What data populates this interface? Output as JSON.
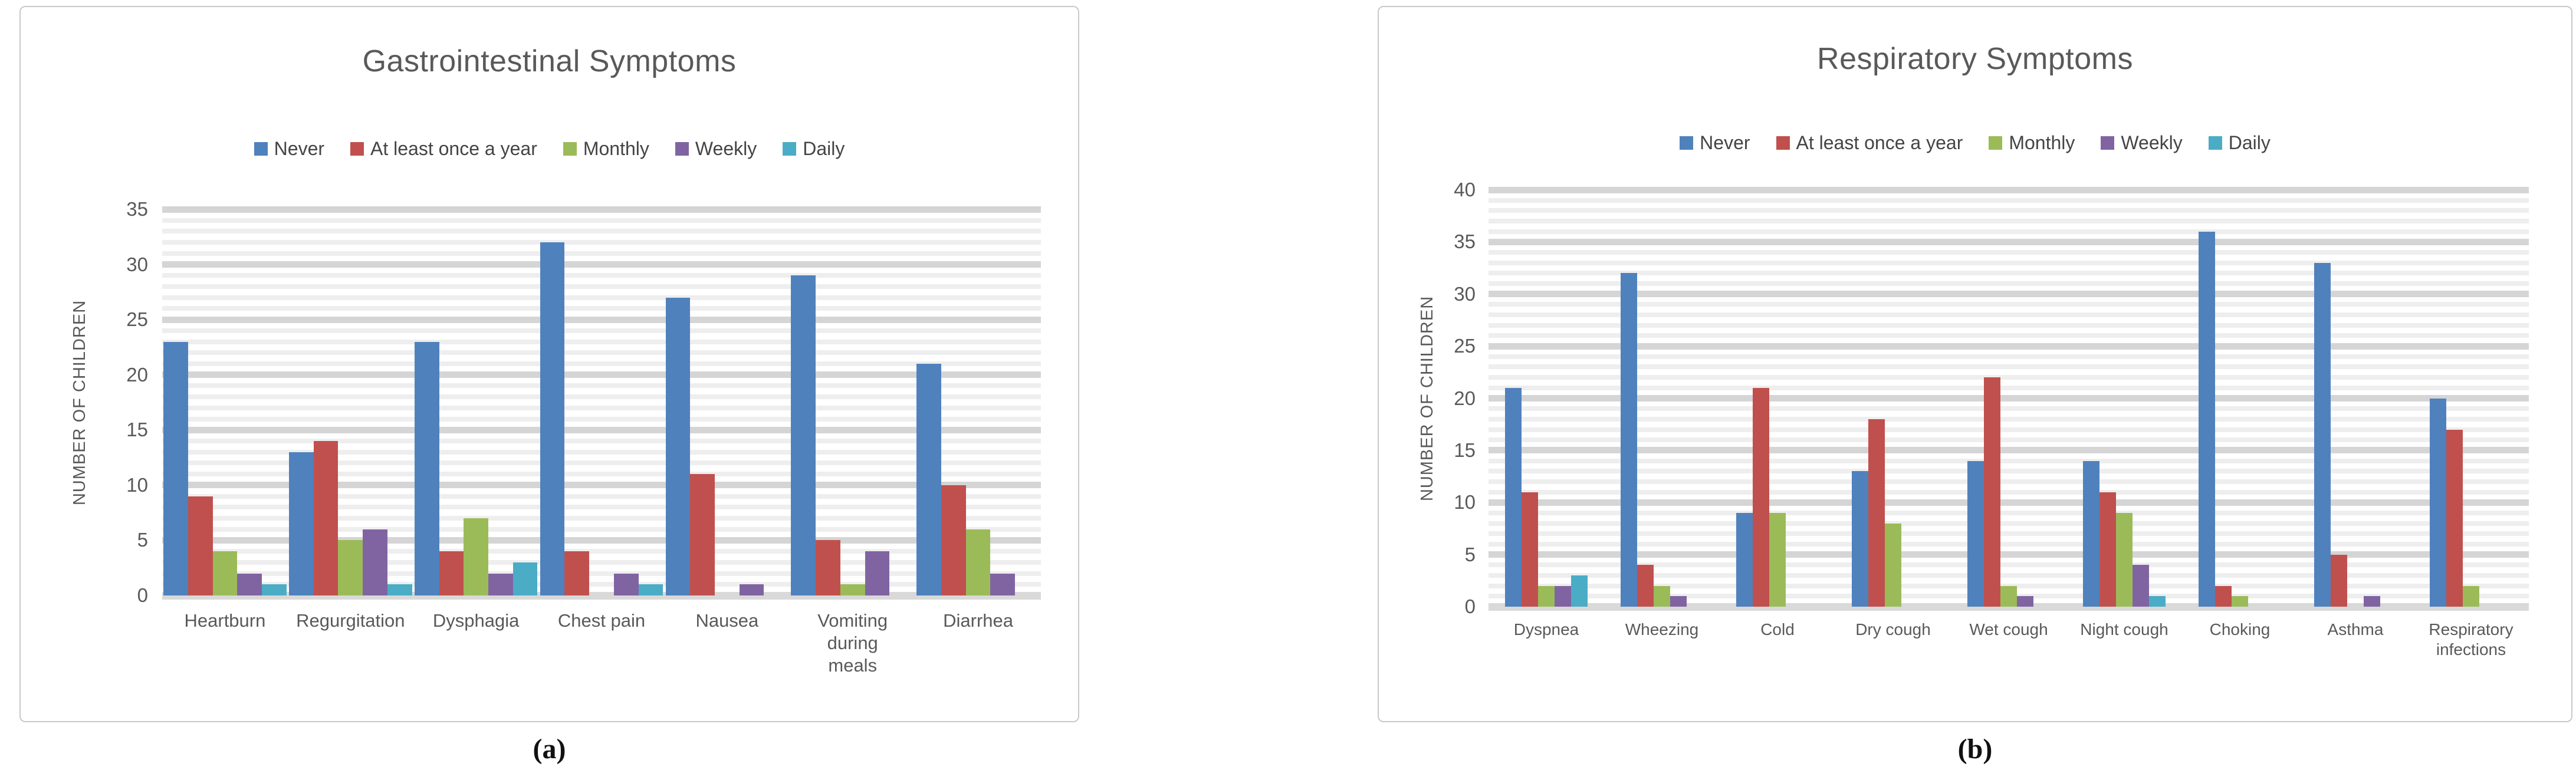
{
  "captions": {
    "a": "(a)",
    "b": "(b)"
  },
  "chart_data": [
    {
      "type": "bar",
      "title": "Gastrointestinal Symptoms",
      "ylabel": "NUMBER OF CHILDREN",
      "xlabel": "",
      "ylim": [
        0,
        35
      ],
      "ytick_step": 5,
      "grid": "horizontal, minor every 1 unit, major every 5 units",
      "legend_position": "top-center",
      "categories": [
        [
          "Heartburn"
        ],
        [
          "Regurgitation"
        ],
        [
          "Dysphagia"
        ],
        [
          "Chest pain"
        ],
        [
          "Nausea"
        ],
        [
          "Vomiting during",
          "meals"
        ],
        [
          "Diarrhea"
        ]
      ],
      "series": [
        {
          "name": "Never",
          "color": "#4f81bd",
          "values": [
            23,
            13,
            23,
            32,
            27,
            29,
            21
          ]
        },
        {
          "name": "At least once a year",
          "color": "#c0504d",
          "values": [
            9,
            14,
            4,
            4,
            11,
            5,
            10
          ]
        },
        {
          "name": "Monthly",
          "color": "#9bbb59",
          "values": [
            4,
            5,
            7,
            0,
            0,
            1,
            6
          ]
        },
        {
          "name": "Weekly",
          "color": "#8064a2",
          "values": [
            2,
            6,
            2,
            2,
            1,
            4,
            2
          ]
        },
        {
          "name": "Daily",
          "color": "#4bacc6",
          "values": [
            1,
            1,
            3,
            1,
            0,
            0,
            0
          ]
        }
      ]
    },
    {
      "type": "bar",
      "title": "Respiratory Symptoms",
      "ylabel": "NUMBER OF CHILDREN",
      "xlabel": "",
      "ylim": [
        0,
        40
      ],
      "ytick_step": 5,
      "grid": "horizontal, minor every 1 unit, major every 5 units",
      "legend_position": "top-center",
      "categories": [
        [
          "Dyspnea"
        ],
        [
          "Wheezing"
        ],
        [
          "Cold"
        ],
        [
          "Dry cough"
        ],
        [
          "Wet cough"
        ],
        [
          "Night cough"
        ],
        [
          "Choking"
        ],
        [
          "Asthma"
        ],
        [
          "Respiratory",
          "infections"
        ]
      ],
      "series": [
        {
          "name": "Never",
          "color": "#4f81bd",
          "values": [
            21,
            32,
            9,
            13,
            14,
            14,
            36,
            33,
            20
          ]
        },
        {
          "name": "At least once a year",
          "color": "#c0504d",
          "values": [
            11,
            4,
            21,
            18,
            22,
            11,
            2,
            5,
            17
          ]
        },
        {
          "name": "Monthly",
          "color": "#9bbb59",
          "values": [
            2,
            2,
            9,
            8,
            2,
            9,
            1,
            0,
            2
          ]
        },
        {
          "name": "Weekly",
          "color": "#8064a2",
          "values": [
            2,
            1,
            0,
            0,
            1,
            4,
            0,
            1,
            0
          ]
        },
        {
          "name": "Daily",
          "color": "#4bacc6",
          "values": [
            3,
            0,
            0,
            0,
            0,
            1,
            0,
            0,
            0
          ]
        }
      ]
    }
  ]
}
